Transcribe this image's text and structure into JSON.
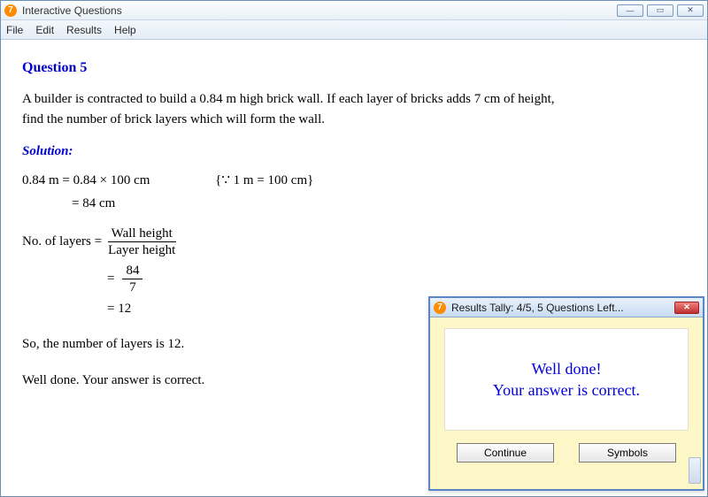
{
  "window": {
    "title": "Interactive Questions",
    "icon_glyph": "7",
    "min_glyph": "—",
    "max_glyph": "▭",
    "close_glyph": "✕"
  },
  "menu": {
    "items": [
      "File",
      "Edit",
      "Results",
      "Help"
    ]
  },
  "question": {
    "heading": "Question 5",
    "prompt_line1": "A builder is contracted to build a 0.84 m high brick wall.  If each layer of bricks adds 7 cm of height,",
    "prompt_line2": "find the number of brick layers which will form the wall.",
    "solution_label": "Solution:",
    "conv_line1_left": "0.84 m = 0.84 × 100 cm",
    "conv_hint": "{∵  1 m = 100 cm}",
    "conv_line2": "= 84 cm",
    "layers_label": "No. of layers = ",
    "frac1_num": "Wall height",
    "frac1_den": "Layer height",
    "frac2_num": "84",
    "frac2_den": "7",
    "result_line": "= 12",
    "conclusion": "So, the number of layers is 12.",
    "feedback": "Well done.  Your answer is correct."
  },
  "popup": {
    "title": "Results Tally:  4/5, 5 Questions Left...",
    "icon_glyph": "7",
    "close_glyph": "✕",
    "msg_line1": "Well done!",
    "msg_line2": "Your answer is correct.",
    "btn_continue": "Continue",
    "btn_symbols": "Symbols"
  },
  "colors": {
    "heading": "#0000cc",
    "popup_msg": "#0000dd",
    "popup_bg": "#fdf7c7",
    "title_gradient_top": "#fdfefe",
    "title_gradient_bot": "#e8eff7",
    "border": "#6b8fb5"
  }
}
